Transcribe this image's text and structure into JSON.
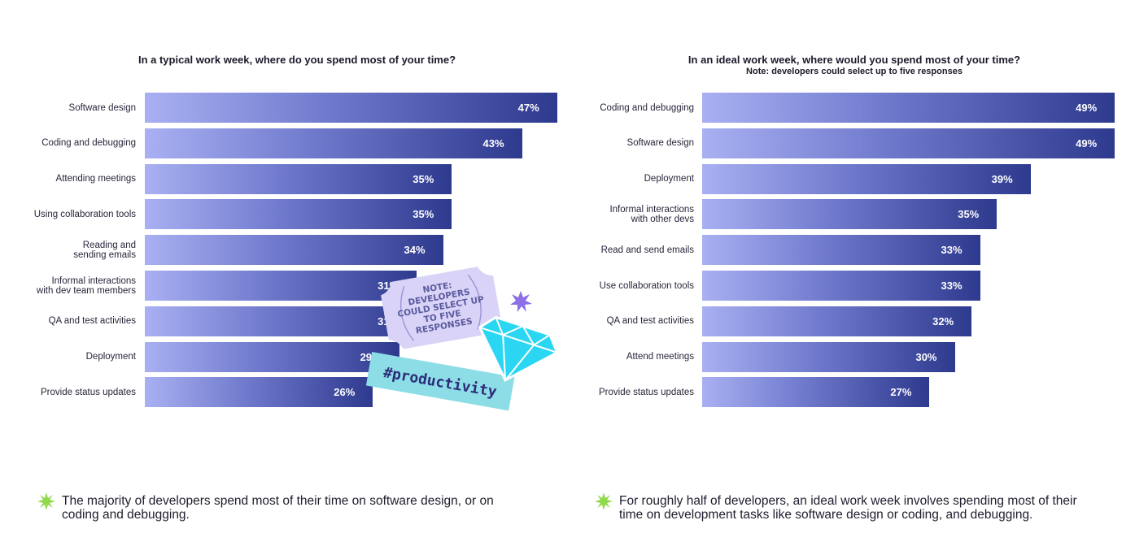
{
  "chart_data": [
    {
      "type": "bar",
      "orientation": "horizontal",
      "title": "In a typical work week, where do you spend most of your time?",
      "subtitle": "",
      "categories": [
        "Software design",
        "Coding and debugging",
        "Attending meetings",
        "Using collaboration tools",
        "Reading and\nsending emails",
        "Informal interactions\nwith dev team members",
        "QA and test activities",
        "Deployment",
        "Provide status updates"
      ],
      "values": [
        47,
        43,
        35,
        35,
        34,
        31,
        31,
        29,
        26
      ],
      "value_labels": [
        "47%",
        "43%",
        "35%",
        "35%",
        "34%",
        "31%",
        "31%",
        "29%",
        "26%"
      ],
      "grid": false
    },
    {
      "type": "bar",
      "orientation": "horizontal",
      "title": "In an ideal work week, where would you spend most of your time?",
      "subtitle": "Note: developers could select up to five responses",
      "categories": [
        "Coding and debugging",
        "Software design",
        "Deployment",
        "Informal interactions\nwith other devs",
        "Read and send emails",
        "Use collaboration tools",
        "QA and test activities",
        "Attend meetings",
        "Provide status updates"
      ],
      "values": [
        49,
        49,
        39,
        35,
        33,
        33,
        32,
        30,
        27
      ],
      "value_labels": [
        "49%",
        "49%",
        "39%",
        "35%",
        "33%",
        "33%",
        "32%",
        "30%",
        "27%"
      ],
      "grid": false
    }
  ],
  "footnotes": [
    "The majority of developers spend most of their time on software design, or on\ncoding and debugging.",
    "For roughly half of developers, an ideal work week involves spending most of their\ntime on development tasks like software design or coding, and debugging."
  ],
  "sticker": {
    "note_lines": [
      "NOTE:",
      "DEVELOPERS",
      "COULD SELECT UP",
      "TO FIVE",
      "RESPONSES"
    ],
    "tag": "#productivity"
  },
  "colors": {
    "bar_light": "#a9b0f2",
    "bar_dark": "#2e3a8e",
    "accent_green": "#8fd94a",
    "sticker_ticket": "#d8d3f7",
    "sticker_tag": "#8ddde6",
    "diamond": "#2ad6f2"
  },
  "icons": {
    "footnote_bullet": "green-starburst-icon",
    "diamond": "diamond-icon",
    "sparkle": "purple-sparkle-icon"
  }
}
